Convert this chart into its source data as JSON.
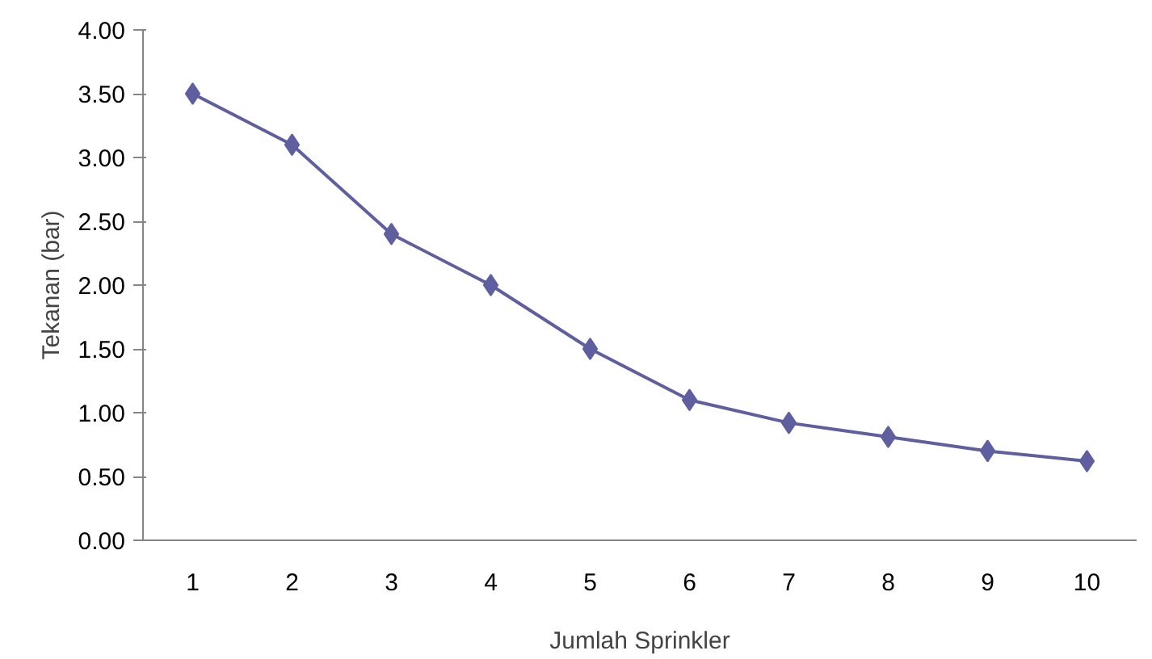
{
  "chart_data": {
    "type": "line",
    "xlabel": "Jumlah Sprinkler",
    "ylabel": "Tekanan (bar)",
    "categories": [
      "1",
      "2",
      "3",
      "4",
      "5",
      "6",
      "7",
      "8",
      "9",
      "10"
    ],
    "series": [
      {
        "color": "#5f5fa0",
        "values": [
          3.5,
          3.1,
          2.4,
          2.0,
          1.5,
          1.1,
          0.92,
          0.81,
          0.7,
          0.62
        ]
      }
    ],
    "ylim": [
      0,
      4
    ],
    "yticks": [
      {
        "value": 0,
        "label": "0.00"
      },
      {
        "value": 0.5,
        "label": "0.50"
      },
      {
        "value": 1,
        "label": "1.00"
      },
      {
        "value": 1.5,
        "label": "1.50"
      },
      {
        "value": 2,
        "label": "2.00"
      },
      {
        "value": 2.5,
        "label": "2.50"
      },
      {
        "value": 3,
        "label": "3.00"
      },
      {
        "value": 3.5,
        "label": "3.50"
      },
      {
        "value": 4,
        "label": "4.00"
      }
    ],
    "marker": "diamond"
  }
}
